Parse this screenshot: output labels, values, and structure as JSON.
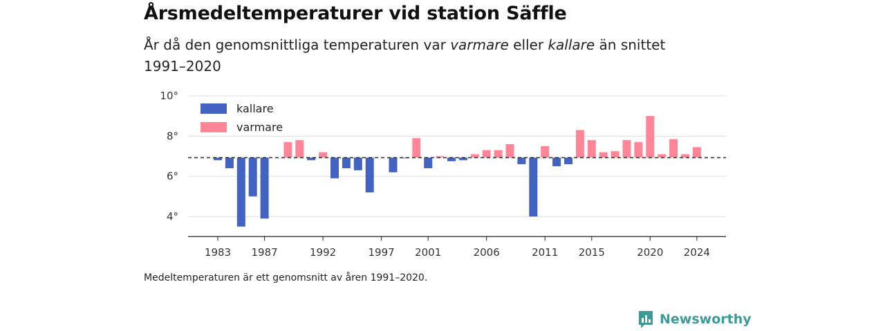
{
  "header": {
    "title": "Årsmedeltemperaturer vid station Säffle",
    "subtitle_pre": "År då den genomsnittliga temperaturen var ",
    "subtitle_warm": "varmare",
    "subtitle_mid": " eller ",
    "subtitle_cold": "kallare",
    "subtitle_post": " än snittet 1991–2020"
  },
  "footnote": "Medeltemperaturen är ett genomsnitt av åren 1991–2020.",
  "brand": {
    "name": "Newsworthy",
    "icon": "newsworthy-logo-icon",
    "color": "#3d9a97"
  },
  "chart_data": {
    "type": "bar",
    "baseline": 6.93,
    "baseline_style": "dashed",
    "ylim": [
      3,
      10
    ],
    "yticks": [
      4,
      6,
      8,
      10
    ],
    "ytick_labels": [
      "4°",
      "6°",
      "8°",
      "10°"
    ],
    "xticks": [
      1983,
      1987,
      1992,
      1997,
      2001,
      2006,
      2011,
      2015,
      2020,
      2024
    ],
    "grid": true,
    "legend_position": "top-left",
    "colors": {
      "kallare": "#4263c2",
      "varmare": "#ff8597"
    },
    "legend": [
      {
        "key": "kallare",
        "label": "kallare"
      },
      {
        "key": "varmare",
        "label": "varmare"
      }
    ],
    "x": [
      1983,
      1984,
      1985,
      1986,
      1987,
      1988,
      1989,
      1990,
      1991,
      1992,
      1993,
      1994,
      1995,
      1996,
      1997,
      1998,
      1999,
      2000,
      2001,
      2002,
      2003,
      2004,
      2005,
      2006,
      2007,
      2008,
      2009,
      2010,
      2011,
      2012,
      2013,
      2014,
      2015,
      2016,
      2017,
      2018,
      2019,
      2020,
      2021,
      2022,
      2023,
      2024
    ],
    "values": [
      6.8,
      6.4,
      3.5,
      5.0,
      3.9,
      null,
      7.7,
      7.8,
      6.8,
      7.2,
      5.9,
      6.4,
      6.3,
      5.2,
      null,
      6.2,
      6.9,
      7.9,
      6.4,
      7.0,
      6.75,
      6.8,
      7.1,
      7.3,
      7.3,
      7.6,
      6.6,
      4.0,
      7.5,
      6.5,
      6.6,
      8.3,
      7.8,
      7.2,
      7.25,
      7.8,
      7.7,
      9.0,
      7.1,
      7.85,
      7.1,
      7.45
    ]
  }
}
